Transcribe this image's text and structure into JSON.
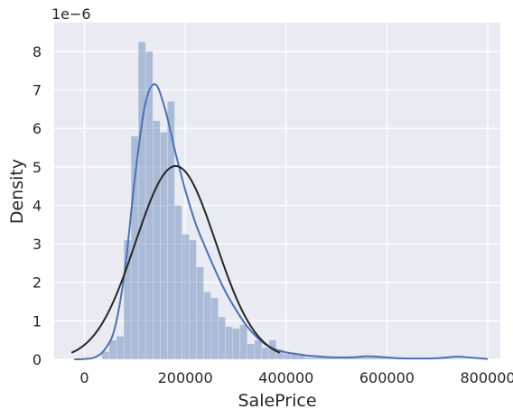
{
  "chart_data": {
    "type": "histogram",
    "xlabel": "SalePrice",
    "ylabel": "Density",
    "y_offset_label": "1e−6",
    "y_scale": 1e-06,
    "xlim": [
      -60000,
      825000
    ],
    "ylim": [
      0,
      8.75
    ],
    "x_ticks": [
      0,
      200000,
      400000,
      600000,
      800000
    ],
    "x_tick_labels": [
      "0",
      "200000",
      "400000",
      "600000",
      "800000"
    ],
    "y_ticks": [
      0,
      1,
      2,
      3,
      4,
      5,
      6,
      7,
      8
    ],
    "y_tick_labels": [
      "0",
      "1",
      "2",
      "3",
      "4",
      "5",
      "6",
      "7",
      "8"
    ],
    "grid": true,
    "colors": {
      "background": "#eaeaf2",
      "grid": "#ffffff",
      "bars": "#4c72b0",
      "kde": "#4c72b0",
      "normal_fit": "#262626"
    },
    "histogram": {
      "bin_start": 34900,
      "bin_width": 14400,
      "density": [
        0.2,
        0.5,
        0.6,
        3.1,
        5.8,
        8.25,
        8.0,
        6.2,
        5.9,
        6.7,
        4.0,
        3.25,
        3.1,
        2.4,
        1.75,
        1.6,
        1.1,
        0.85,
        0.8,
        0.9,
        0.4,
        0.5,
        0.3,
        0.5,
        0.25,
        0.15,
        0.15,
        0.1,
        0.05,
        0.05,
        0.05,
        0.05,
        0.05,
        0.05,
        0.05,
        0.05,
        0.05,
        0.05,
        0.05,
        0.05,
        0.02,
        0.02,
        0.02,
        0.02,
        0.02,
        0.02,
        0.02,
        0.02,
        0.02,
        0.02
      ]
    },
    "series": [
      {
        "kind": "kde",
        "x": [
          -20000,
          0,
          20000,
          40000,
          60000,
          80000,
          100000,
          120000,
          140000,
          160000,
          180000,
          200000,
          220000,
          240000,
          260000,
          280000,
          300000,
          320000,
          340000,
          360000,
          380000,
          400000,
          420000,
          440000,
          460000,
          480000,
          500000,
          520000,
          540000,
          560000,
          580000,
          600000,
          620000,
          640000,
          660000,
          680000,
          700000,
          720000,
          740000,
          760000,
          780000,
          800000
        ],
        "y": [
          0,
          0.01,
          0.05,
          0.25,
          0.8,
          2.3,
          4.7,
          6.6,
          7.15,
          6.5,
          5.4,
          4.4,
          3.55,
          2.9,
          2.3,
          1.75,
          1.3,
          0.9,
          0.6,
          0.38,
          0.25,
          0.18,
          0.14,
          0.1,
          0.08,
          0.06,
          0.05,
          0.05,
          0.06,
          0.08,
          0.07,
          0.05,
          0.03,
          0.02,
          0.02,
          0.02,
          0.03,
          0.05,
          0.07,
          0.05,
          0.03,
          0.01
        ]
      },
      {
        "kind": "normal_fit",
        "mean": 180921,
        "std": 79443
      }
    ]
  }
}
